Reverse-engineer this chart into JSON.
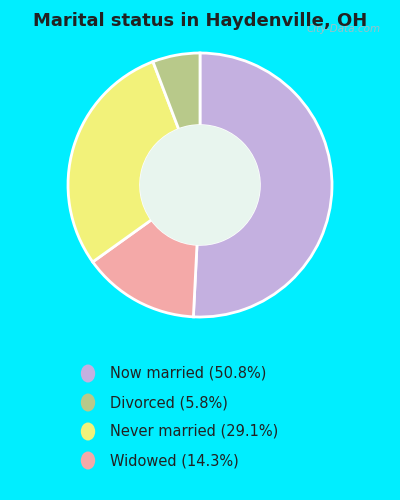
{
  "title": "Marital status in Haydenville, OH",
  "values": [
    50.8,
    14.3,
    29.1,
    5.8
  ],
  "colors": [
    "#c4b0e0",
    "#f4a9a8",
    "#f2f27a",
    "#b8c98a"
  ],
  "legend_labels": [
    "Now married (50.8%)",
    "Divorced (5.8%)",
    "Never married (29.1%)",
    "Widowed (14.3%)"
  ],
  "legend_colors": [
    "#c4b0e0",
    "#b8c98a",
    "#f2f27a",
    "#f4a9a8"
  ],
  "bg_chart": "#e8f5ee",
  "bg_fig": "#00eeff",
  "title_fontsize": 13,
  "legend_fontsize": 10.5,
  "watermark": "City-Data.com",
  "donut_width": 0.55,
  "startangle": 90
}
